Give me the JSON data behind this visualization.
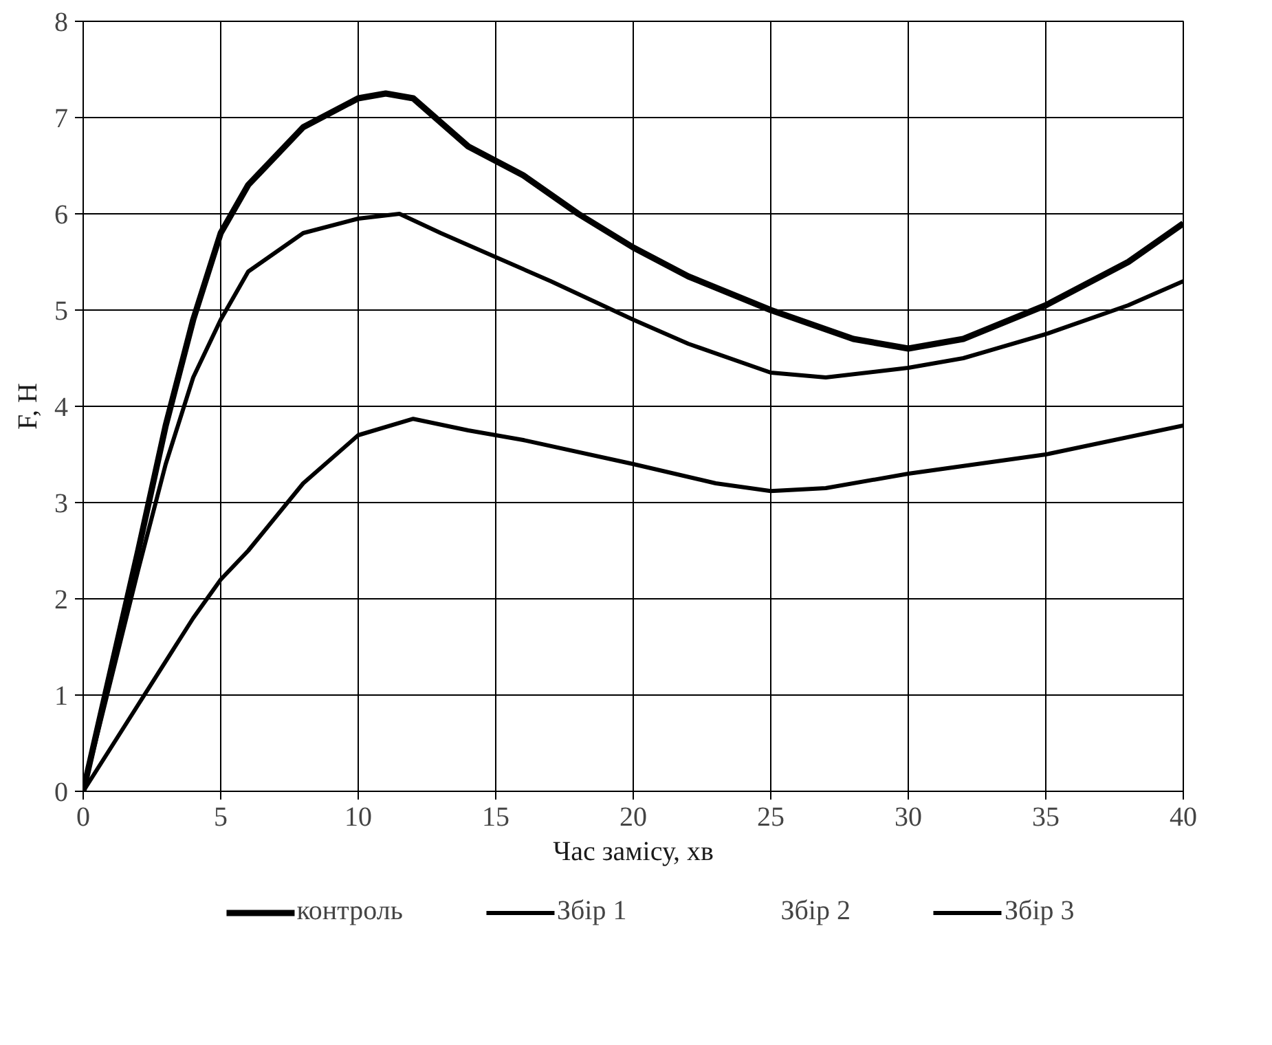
{
  "chart_data": {
    "type": "line",
    "xlabel": "Час замісу, хв",
    "ylabel": "F, Н",
    "xlim": [
      0,
      40
    ],
    "ylim": [
      0,
      8
    ],
    "xticks": [
      0,
      5,
      10,
      15,
      20,
      25,
      30,
      35,
      40
    ],
    "yticks": [
      0,
      1,
      2,
      3,
      4,
      5,
      6,
      7,
      8
    ],
    "grid": true,
    "legend": "bottom",
    "marker": "none",
    "line_style": "solid",
    "series": [
      {
        "name": "контроль",
        "color": "#000000",
        "x": [
          0,
          2,
          3,
          4,
          5,
          6,
          8,
          10,
          11,
          12,
          14,
          16,
          18,
          20,
          22,
          25,
          28,
          30,
          32,
          35,
          38,
          40
        ],
        "values": [
          0,
          2.5,
          3.8,
          4.9,
          5.8,
          6.3,
          6.9,
          7.2,
          7.25,
          7.2,
          6.7,
          6.4,
          6.0,
          5.65,
          5.35,
          5.0,
          4.7,
          4.6,
          4.7,
          5.05,
          5.5,
          5.9
        ]
      },
      {
        "name": "Збір 1",
        "color": "#000000",
        "x": [
          0,
          2,
          3,
          4,
          5,
          6,
          8,
          10,
          11.5,
          13,
          15,
          17,
          20,
          22,
          25,
          27,
          30,
          32,
          35,
          38,
          40
        ],
        "values": [
          0,
          2.3,
          3.4,
          4.3,
          4.9,
          5.4,
          5.8,
          5.95,
          6.0,
          5.8,
          5.55,
          5.3,
          4.9,
          4.65,
          4.35,
          4.3,
          4.4,
          4.5,
          4.75,
          5.05,
          5.3
        ]
      },
      {
        "name": "Збір 2"
      },
      {
        "name": "Збір 3",
        "color": "#000000",
        "x": [
          0,
          2,
          4,
          5,
          6,
          8,
          10,
          12,
          14,
          16,
          20,
          23,
          25,
          27,
          30,
          35,
          40
        ],
        "values": [
          0,
          0.9,
          1.8,
          2.2,
          2.5,
          3.2,
          3.7,
          3.87,
          3.75,
          3.65,
          3.4,
          3.2,
          3.12,
          3.15,
          3.3,
          3.5,
          3.8
        ]
      }
    ]
  }
}
